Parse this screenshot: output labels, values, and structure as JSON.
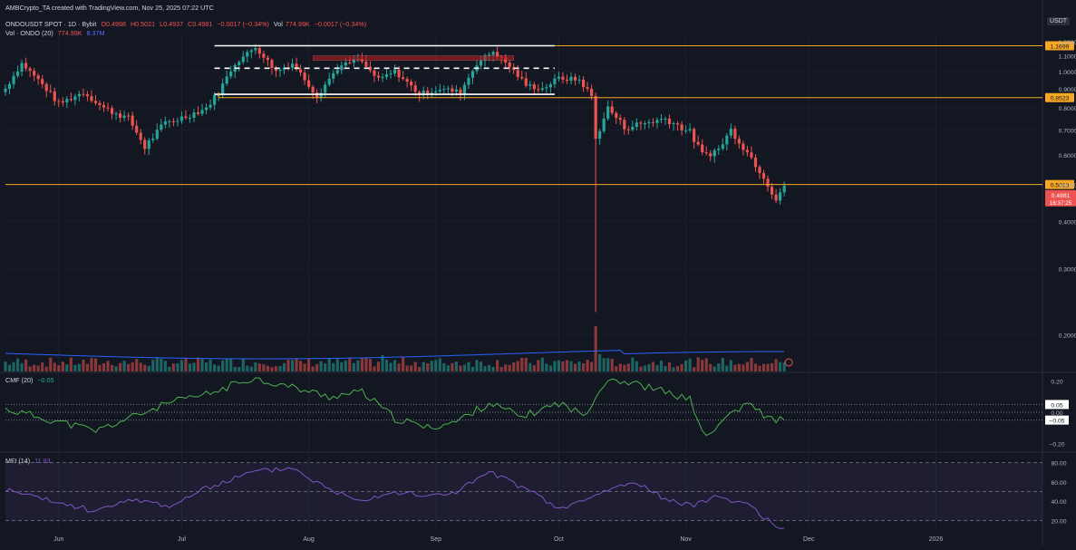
{
  "header": {
    "credit": "AMBCrypto_TA created with TradingView.com, Nov 25, 2025 07:22 UTC",
    "symbol": "ONDOUSDT SPOT · 1D · Bybit",
    "open": "O0.4998",
    "high": "H0.5021",
    "low": "L0.4937",
    "close": "C0.4981",
    "change": "−0.0017 (−0.34%)",
    "vol_label": "Vol",
    "vol_value": "774.99K",
    "vol_change": "−0.0017 (−0.34%)",
    "vol_indicator": "Vol · ONDO (20)",
    "vol_indicator_value": "774.99K",
    "vol_indicator_ma": "8.37M",
    "currency_badge": "USDT"
  },
  "indicators": {
    "cmf_label": "CMF (20)",
    "cmf_value": "−0.05",
    "mfi_label": "MFI (14)",
    "mfi_value": "11.83"
  },
  "colors": {
    "up": "#26a69a",
    "down": "#ef5350",
    "level": "#f5a623",
    "range": "#ffffff",
    "supply_zone": "#b71c1c",
    "cmf_line": "#4caf50",
    "mfi_line": "#7e57c2",
    "volume_ma": "#2962ff"
  },
  "chart_data": {
    "type": "candlestick",
    "symbol": "ONDOUSDT",
    "timeframe": "1D",
    "exchange": "Bybit",
    "y_scale": "log",
    "ylim": [
      0.16,
      1.24
    ],
    "x_range": [
      "2025-05-19",
      "2026-01-27"
    ],
    "x_ticks": [
      {
        "date": "2025-06-01",
        "label": "Jun"
      },
      {
        "date": "2025-07-01",
        "label": "Jul"
      },
      {
        "date": "2025-08-01",
        "label": "Aug"
      },
      {
        "date": "2025-09-01",
        "label": "Sep"
      },
      {
        "date": "2025-10-01",
        "label": "Oct"
      },
      {
        "date": "2025-11-01",
        "label": "Nov"
      },
      {
        "date": "2025-12-01",
        "label": "Dec"
      },
      {
        "date": "2026-01-01",
        "label": "2026"
      }
    ],
    "y_ticks": [
      "1.2000",
      "1.1000",
      "1.0000",
      "0.9000",
      "0.8000",
      "0.7000",
      "0.6000",
      "0.5000",
      "0.4000",
      "0.3000",
      "0.2000"
    ],
    "price_levels": [
      {
        "value": 1.1699,
        "label": "1.1699"
      },
      {
        "value": 0.8523,
        "label": "0.8523"
      },
      {
        "value": 0.5013,
        "label": "0.5013"
      }
    ],
    "last_price": {
      "value": 0.4981,
      "label": "0.4981",
      "countdown": "16:37:25"
    },
    "range_box": {
      "start": "2025-07-09",
      "end": "2025-09-30",
      "top": 1.17,
      "mid": 1.02,
      "bottom": 0.87
    },
    "supply_zone": {
      "start": "2025-08-02",
      "end": "2025-09-20",
      "top": 1.1,
      "bottom": 1.07
    },
    "anchors": [
      [
        "2025-05-19",
        0.9
      ],
      [
        "2025-05-23",
        1.05
      ],
      [
        "2025-05-27",
        0.95
      ],
      [
        "2025-06-01",
        0.82
      ],
      [
        "2025-06-07",
        0.88
      ],
      [
        "2025-06-12",
        0.8
      ],
      [
        "2025-06-18",
        0.75
      ],
      [
        "2025-06-22",
        0.63
      ],
      [
        "2025-06-27",
        0.73
      ],
      [
        "2025-07-02",
        0.76
      ],
      [
        "2025-07-07",
        0.8
      ],
      [
        "2025-07-10",
        0.88
      ],
      [
        "2025-07-14",
        1.05
      ],
      [
        "2025-07-19",
        1.16
      ],
      [
        "2025-07-24",
        1.0
      ],
      [
        "2025-07-28",
        1.05
      ],
      [
        "2025-08-03",
        0.86
      ],
      [
        "2025-08-08",
        1.02
      ],
      [
        "2025-08-13",
        1.08
      ],
      [
        "2025-08-18",
        0.95
      ],
      [
        "2025-08-22",
        1.0
      ],
      [
        "2025-08-28",
        0.87
      ],
      [
        "2025-09-02",
        0.9
      ],
      [
        "2025-09-07",
        0.88
      ],
      [
        "2025-09-11",
        1.05
      ],
      [
        "2025-09-15",
        1.13
      ],
      [
        "2025-09-19",
        1.03
      ],
      [
        "2025-09-23",
        0.92
      ],
      [
        "2025-09-27",
        0.9
      ],
      [
        "2025-10-01",
        0.96
      ],
      [
        "2025-10-06",
        0.95
      ],
      [
        "2025-10-09",
        0.86
      ],
      [
        "2025-10-10",
        0.66
      ],
      [
        "2025-10-13",
        0.8
      ],
      [
        "2025-10-17",
        0.71
      ],
      [
        "2025-10-22",
        0.73
      ],
      [
        "2025-10-27",
        0.75
      ],
      [
        "2025-11-02",
        0.69
      ],
      [
        "2025-11-05",
        0.6
      ],
      [
        "2025-11-09",
        0.62
      ],
      [
        "2025-11-12",
        0.7
      ],
      [
        "2025-11-16",
        0.61
      ],
      [
        "2025-11-20",
        0.53
      ],
      [
        "2025-11-23",
        0.46
      ],
      [
        "2025-11-25",
        0.4981
      ]
    ],
    "spikes": {
      "2025-10-10": {
        "low": 0.23,
        "volume_mult": 5.0
      },
      "2025-10-11": {
        "volume_mult": 1.6
      },
      "2025-08-19": {
        "volume_mult": 1.5
      }
    },
    "cmf": {
      "ylim": [
        -0.25,
        0.25
      ],
      "ticks": [
        "0.20",
        "0.05",
        "0.00",
        "−0.05",
        "−0.20"
      ],
      "levels": [
        0.05,
        0.0,
        -0.05
      ],
      "anchors": [
        [
          "2025-05-19",
          0.02
        ],
        [
          "2025-06-01",
          -0.06
        ],
        [
          "2025-06-10",
          -0.12
        ],
        [
          "2025-06-20",
          -0.02
        ],
        [
          "2025-06-28",
          0.06
        ],
        [
          "2025-07-08",
          0.12
        ],
        [
          "2025-07-18",
          0.22
        ],
        [
          "2025-07-28",
          0.16
        ],
        [
          "2025-08-06",
          0.1
        ],
        [
          "2025-08-14",
          0.13
        ],
        [
          "2025-08-22",
          -0.04
        ],
        [
          "2025-08-30",
          -0.1
        ],
        [
          "2025-09-06",
          -0.06
        ],
        [
          "2025-09-14",
          0.06
        ],
        [
          "2025-09-22",
          -0.03
        ],
        [
          "2025-10-01",
          0.06
        ],
        [
          "2025-10-07",
          -0.02
        ],
        [
          "2025-10-13",
          0.22
        ],
        [
          "2025-10-20",
          0.18
        ],
        [
          "2025-10-27",
          0.13
        ],
        [
          "2025-11-02",
          0.08
        ],
        [
          "2025-11-06",
          -0.17
        ],
        [
          "2025-11-12",
          0.0
        ],
        [
          "2025-11-17",
          0.05
        ],
        [
          "2025-11-21",
          -0.04
        ],
        [
          "2025-11-25",
          -0.05
        ]
      ]
    },
    "mfi": {
      "ylim": [
        10,
        90
      ],
      "ticks": [
        "80.00",
        "60.00",
        "40.00",
        "20.00"
      ],
      "band": [
        20,
        80
      ],
      "mid": 50,
      "anchors": [
        [
          "2025-05-19",
          52
        ],
        [
          "2025-06-01",
          38
        ],
        [
          "2025-06-10",
          30
        ],
        [
          "2025-06-20",
          42
        ],
        [
          "2025-06-28",
          35
        ],
        [
          "2025-07-08",
          55
        ],
        [
          "2025-07-18",
          70
        ],
        [
          "2025-07-28",
          75
        ],
        [
          "2025-08-06",
          52
        ],
        [
          "2025-08-14",
          42
        ],
        [
          "2025-08-22",
          50
        ],
        [
          "2025-08-30",
          45
        ],
        [
          "2025-09-06",
          50
        ],
        [
          "2025-09-14",
          70
        ],
        [
          "2025-09-22",
          55
        ],
        [
          "2025-10-01",
          32
        ],
        [
          "2025-10-07",
          40
        ],
        [
          "2025-10-13",
          52
        ],
        [
          "2025-10-20",
          60
        ],
        [
          "2025-10-27",
          42
        ],
        [
          "2025-11-02",
          35
        ],
        [
          "2025-11-08",
          45
        ],
        [
          "2025-11-14",
          40
        ],
        [
          "2025-11-19",
          28
        ],
        [
          "2025-11-22",
          16
        ],
        [
          "2025-11-25",
          12
        ]
      ]
    }
  }
}
